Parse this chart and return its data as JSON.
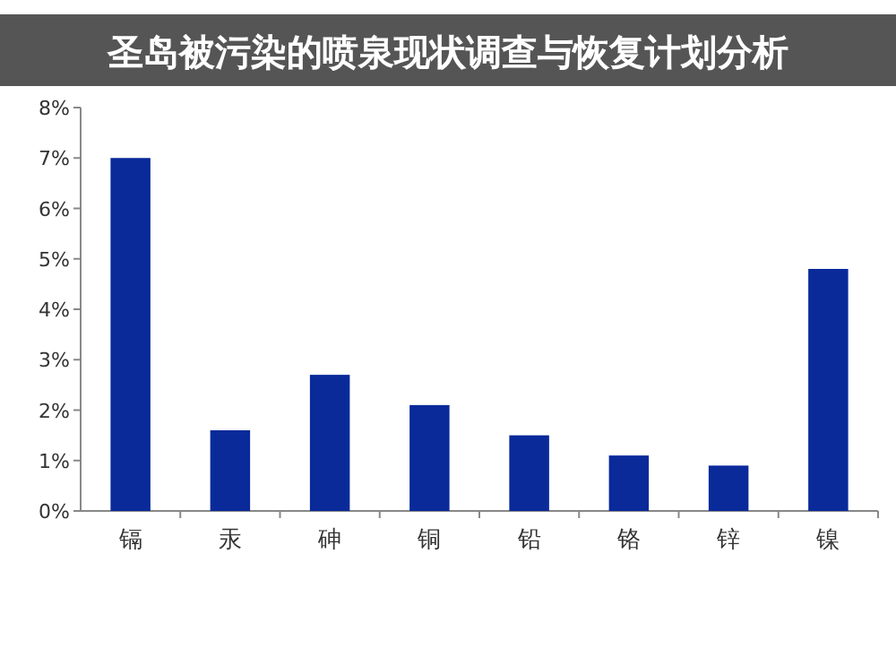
{
  "chart_data": {
    "type": "bar",
    "title": "圣岛被污染的喷泉现状调查与恢复计划分析",
    "categories": [
      "镉",
      "汞",
      "砷",
      "铜",
      "铅",
      "铬",
      "锌",
      "镍"
    ],
    "values": [
      7.0,
      1.6,
      2.7,
      2.1,
      1.5,
      1.1,
      0.9,
      4.8
    ],
    "color": "#0a2a9a",
    "ylim": [
      0,
      8
    ],
    "yticks": [
      {
        "value": 0,
        "label": "0%"
      },
      {
        "value": 1,
        "label": "1%"
      },
      {
        "value": 2,
        "label": "2%"
      },
      {
        "value": 3,
        "label": "3%"
      },
      {
        "value": 4,
        "label": "4%"
      },
      {
        "value": 5,
        "label": "5%"
      },
      {
        "value": 6,
        "label": "6%"
      },
      {
        "value": 7,
        "label": "7%"
      },
      {
        "value": 8,
        "label": "8%"
      }
    ],
    "grid": false
  }
}
